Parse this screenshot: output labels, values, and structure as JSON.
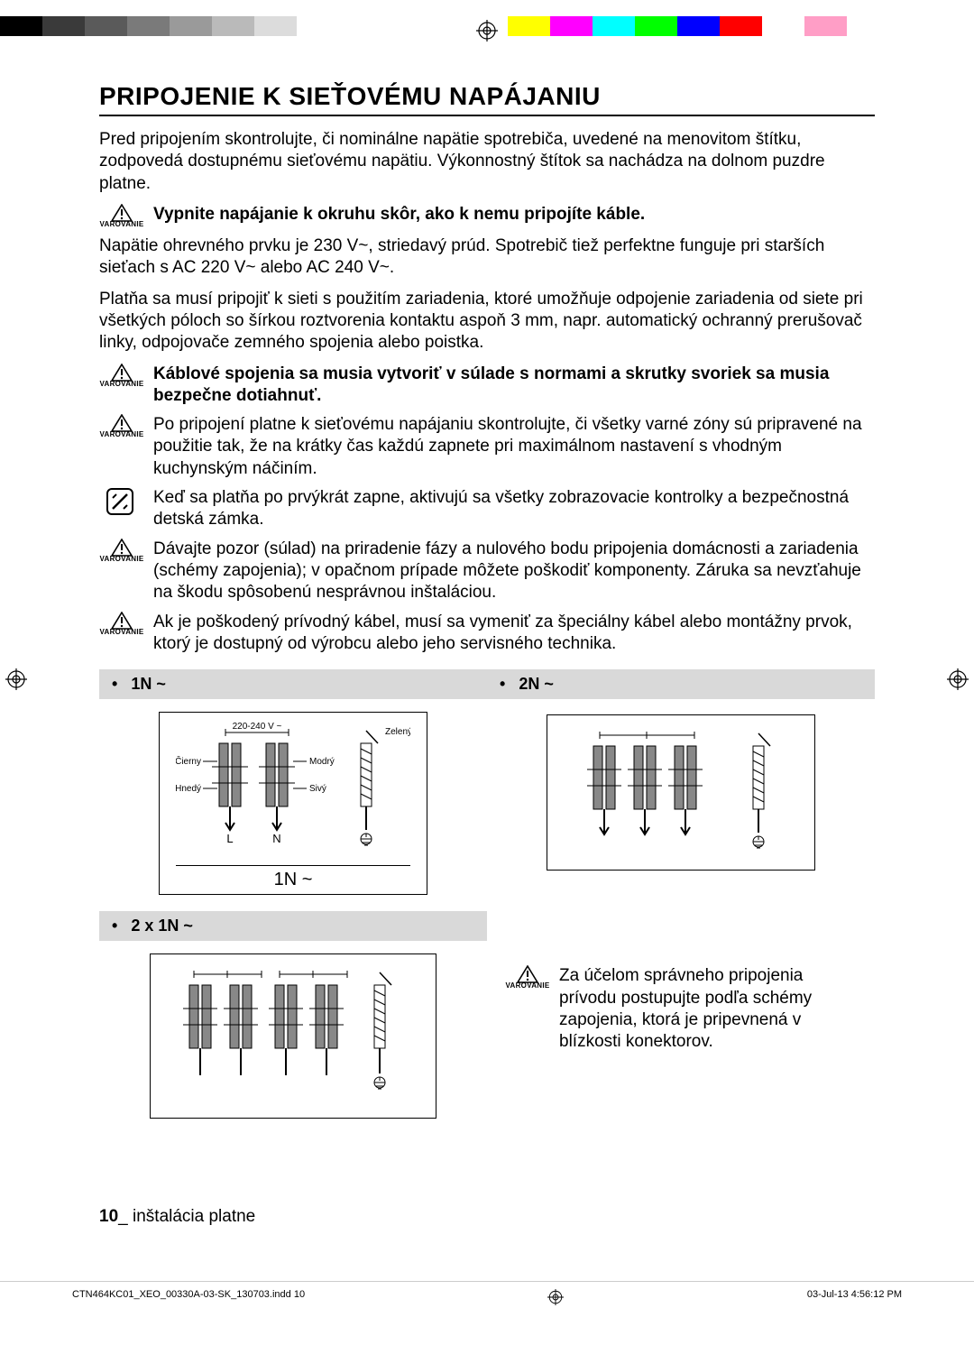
{
  "colorbar": [
    "#000000",
    "#3a3a3a",
    "#5a5a5a",
    "#7a7a7a",
    "#9a9a9a",
    "#bababa",
    "#dcdcdc",
    "#ffffff",
    "#ffffff",
    "#ffffff",
    "#ffffff",
    "#ffffff",
    "#ffff00",
    "#ff00ff",
    "#00ffff",
    "#00ff00",
    "#0000ff",
    "#ff0000",
    "#ffffff",
    "#ff9ec6",
    "#ffffff",
    "#ffffff",
    "#ffffff"
  ],
  "title": "PRIPOJENIE K SIEŤOVÉMU NAPÁJANIU",
  "intro": "Pred pripojením skontrolujte, či nominálne napätie spotrebiča, uvedené na menovitom štítku, zodpovedá dostupnému sieťovému napätiu. Výkonnostný štítok sa nachádza na dolnom puzdre platne.",
  "warn_label": "VAROVANIE",
  "warn1": "Vypnite napájanie k okruhu skôr, ako k nemu pripojíte káble.",
  "para2": "Napätie ohrevného prvku je 230 V~, striedavý prúd. Spotrebič tiež perfektne funguje pri starších sieťach s AC 220 V~ alebo AC 240 V~.",
  "para3": "Platňa sa musí pripojiť k sieti s použitím zariadenia, ktoré umožňuje odpojenie zariadenia od siete pri všetkých póloch so šírkou roztvorenia kontaktu aspoň 3 mm, napr. automatický ochranný prerušovač linky, odpojovače zemného spojenia alebo poistka.",
  "warn2": "Káblové spojenia sa musia vytvoriť v súlade s normami a skrutky svoriek sa musia bezpečne dotiahnuť.",
  "warn3": "Po pripojení platne k sieťovému napájaniu skontrolujte, či všetky varné zóny sú pripravené na použitie tak, že na krátky čas každú zapnete pri maximálnom nastavení s vhodným kuchynským náčiním.",
  "note1": "Keď sa platňa po prvýkrát zapne, aktivujú sa všetky zobrazovacie kontrolky a bezpečnostná detská zámka.",
  "warn4": "Dávajte pozor (súlad) na priradenie fázy a nulového bodu pripojenia domácnosti a zariadenia (schémy zapojenia); v opačnom prípade môžete poškodiť komponenty. Záruka sa nevzťahuje na škodu spôsobenú nesprávnou inštaláciou.",
  "warn5": "Ak je poškodený prívodný kábel, musí sa vymeniť za špeciálny kábel alebo montážny prvok, ktorý je dostupný od výrobcu alebo jeho servisného technika.",
  "diag": {
    "h1": "1N ~",
    "h2": "2N ~",
    "h3": "2 x 1N ~",
    "caption1": "1N ~",
    "voltage": "220-240 V ~",
    "green_yellow": "Zelený/ Žltý",
    "black": "Čierny",
    "blue": "Modrý",
    "brown": "Hnedý",
    "grey": "Sivý",
    "L": "L",
    "N": "N"
  },
  "warn6": "Za účelom správneho pripojenia prívodu postupujte podľa schémy zapojenia, ktorá je pripevnená v blízkosti konektorov.",
  "footer_num": "10",
  "footer_sep": "_",
  "footer_text": " inštalácia platne",
  "print_file": "CTN464KC01_XEO_00330A-03-SK_130703.indd   10",
  "print_date": "03-Jul-13   4:56:12 PM"
}
